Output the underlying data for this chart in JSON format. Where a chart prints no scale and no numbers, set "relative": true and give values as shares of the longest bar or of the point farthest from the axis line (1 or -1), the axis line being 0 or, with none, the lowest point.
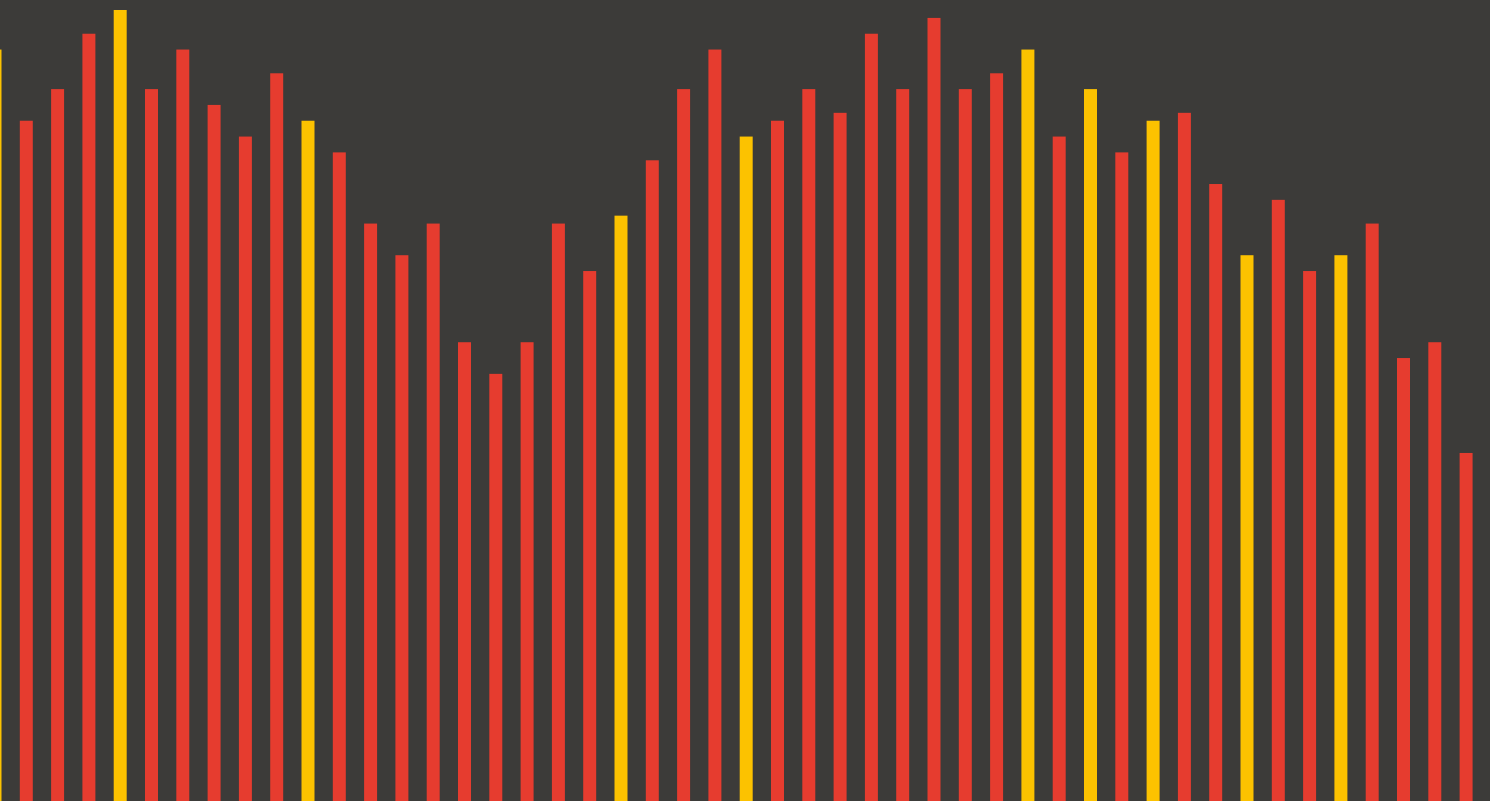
{
  "chart_data": {
    "type": "bar",
    "relative": true,
    "categories": [
      null,
      null,
      null,
      null,
      null,
      null,
      null,
      null,
      null,
      null,
      null,
      null,
      null,
      null,
      null,
      null,
      null,
      null,
      null,
      null,
      null,
      null,
      null,
      null,
      null,
      null,
      null,
      null,
      null,
      null,
      null,
      null,
      null,
      null,
      null,
      null,
      null,
      null,
      null,
      null,
      null,
      null,
      null,
      null,
      null,
      null,
      null,
      null
    ],
    "values": [
      0.95,
      0.86,
      0.9,
      0.97,
      1,
      0.9,
      0.95,
      0.88,
      0.84,
      0.92,
      0.86,
      0.82,
      0.73,
      0.69,
      0.73,
      0.58,
      0.54,
      0.58,
      0.73,
      0.67,
      0.74,
      0.81,
      0.9,
      0.95,
      0.84,
      0.86,
      0.9,
      0.87,
      0.97,
      0.9,
      0.99,
      0.9,
      0.92,
      0.95,
      0.84,
      0.9,
      0.82,
      0.86,
      0.87,
      0.78,
      0.69,
      0.76,
      0.67,
      0.69,
      0.73,
      0.56,
      0.58,
      0.44
    ],
    "colors": [
      "#fcc200",
      "#e63c2f",
      "#e63c2f",
      "#e63c2f",
      "#fcc200",
      "#e63c2f",
      "#e63c2f",
      "#e63c2f",
      "#e63c2f",
      "#e63c2f",
      "#fcc200",
      "#e63c2f",
      "#e63c2f",
      "#e63c2f",
      "#e63c2f",
      "#e63c2f",
      "#e63c2f",
      "#e63c2f",
      "#e63c2f",
      "#e63c2f",
      "#fcc200",
      "#e63c2f",
      "#e63c2f",
      "#e63c2f",
      "#fcc200",
      "#e63c2f",
      "#e63c2f",
      "#e63c2f",
      "#e63c2f",
      "#e63c2f",
      "#e63c2f",
      "#e63c2f",
      "#e63c2f",
      "#fcc200",
      "#e63c2f",
      "#fcc200",
      "#e63c2f",
      "#fcc200",
      "#e63c2f",
      "#e63c2f",
      "#fcc200",
      "#e63c2f",
      "#e63c2f",
      "#fcc200",
      "#e63c2f",
      "#e63c2f",
      "#e63c2f",
      "#e63c2f"
    ]
  }
}
